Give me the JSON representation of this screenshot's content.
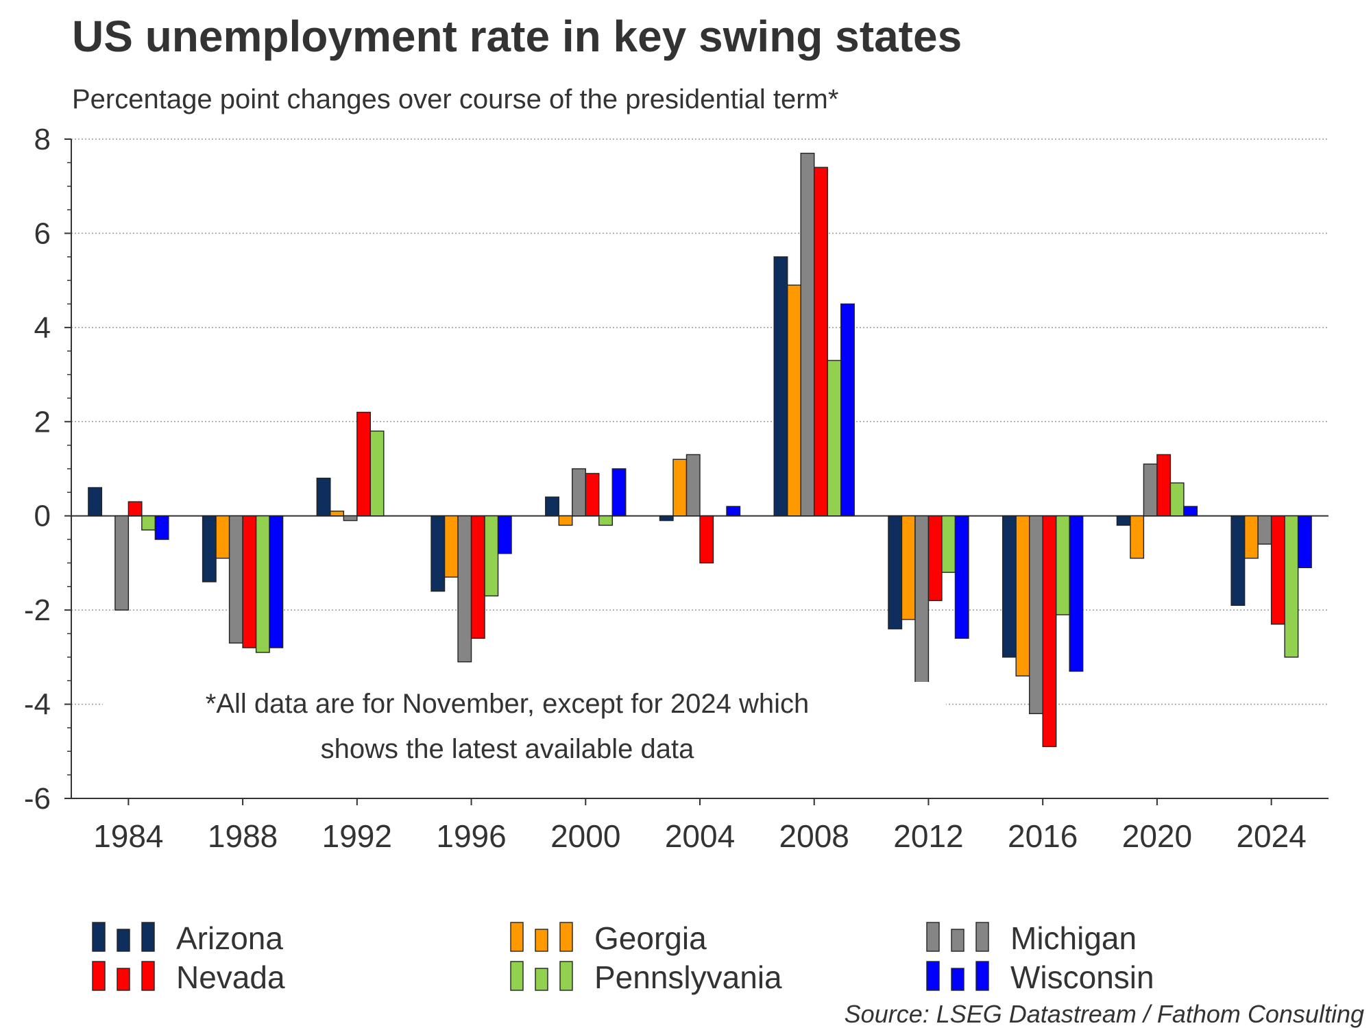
{
  "chart_data": {
    "type": "bar",
    "title": "US unemployment rate in key swing states",
    "subtitle": "Percentage point changes over course of the presidential term*",
    "note_lines": [
      "*All data are for November, except for 2024 which",
      "shows the latest available data"
    ],
    "source": "Source: LSEG Datastream / Fathom Consulting",
    "xlabel": "",
    "ylabel": "",
    "ylim": [
      -6,
      8
    ],
    "yticks": [
      8,
      6,
      4,
      2,
      0,
      -2,
      -4,
      -6
    ],
    "grid": true,
    "legend_position": "bottom",
    "categories": [
      "1984",
      "1988",
      "1992",
      "1996",
      "2000",
      "2004",
      "2008",
      "2012",
      "2016",
      "2020",
      "2024"
    ],
    "series": [
      {
        "name": "Arizona",
        "color": "#0e2f5e",
        "values": [
          0.6,
          -1.4,
          0.8,
          -1.6,
          0.4,
          -0.1,
          5.5,
          -2.4,
          -3.0,
          -0.2,
          -1.9
        ]
      },
      {
        "name": "Georgia",
        "color": "#ff9900",
        "values": [
          0.0,
          -0.9,
          0.1,
          -1.3,
          -0.2,
          1.2,
          4.9,
          -2.2,
          -3.4,
          -0.9,
          -0.9
        ]
      },
      {
        "name": "Michigan",
        "color": "#858585",
        "values": [
          -2.0,
          -2.7,
          -0.1,
          -3.1,
          1.0,
          1.3,
          7.7,
          -3.7,
          -4.2,
          1.1,
          -0.6
        ]
      },
      {
        "name": "Nevada",
        "color": "#ff0000",
        "values": [
          0.3,
          -2.8,
          2.2,
          -2.6,
          0.9,
          -1.0,
          7.4,
          -1.8,
          -4.9,
          1.3,
          -2.3
        ]
      },
      {
        "name": "Pennslyvania",
        "color": "#92d050",
        "values": [
          -0.3,
          -2.9,
          1.8,
          -1.7,
          -0.2,
          0.0,
          3.3,
          -1.2,
          -2.1,
          0.7,
          -3.0
        ]
      },
      {
        "name": "Wisconsin",
        "color": "#0000ff",
        "values": [
          -0.5,
          -2.8,
          0.0,
          -0.8,
          1.0,
          0.2,
          4.5,
          -2.6,
          -3.3,
          0.2,
          -1.1
        ]
      }
    ]
  }
}
